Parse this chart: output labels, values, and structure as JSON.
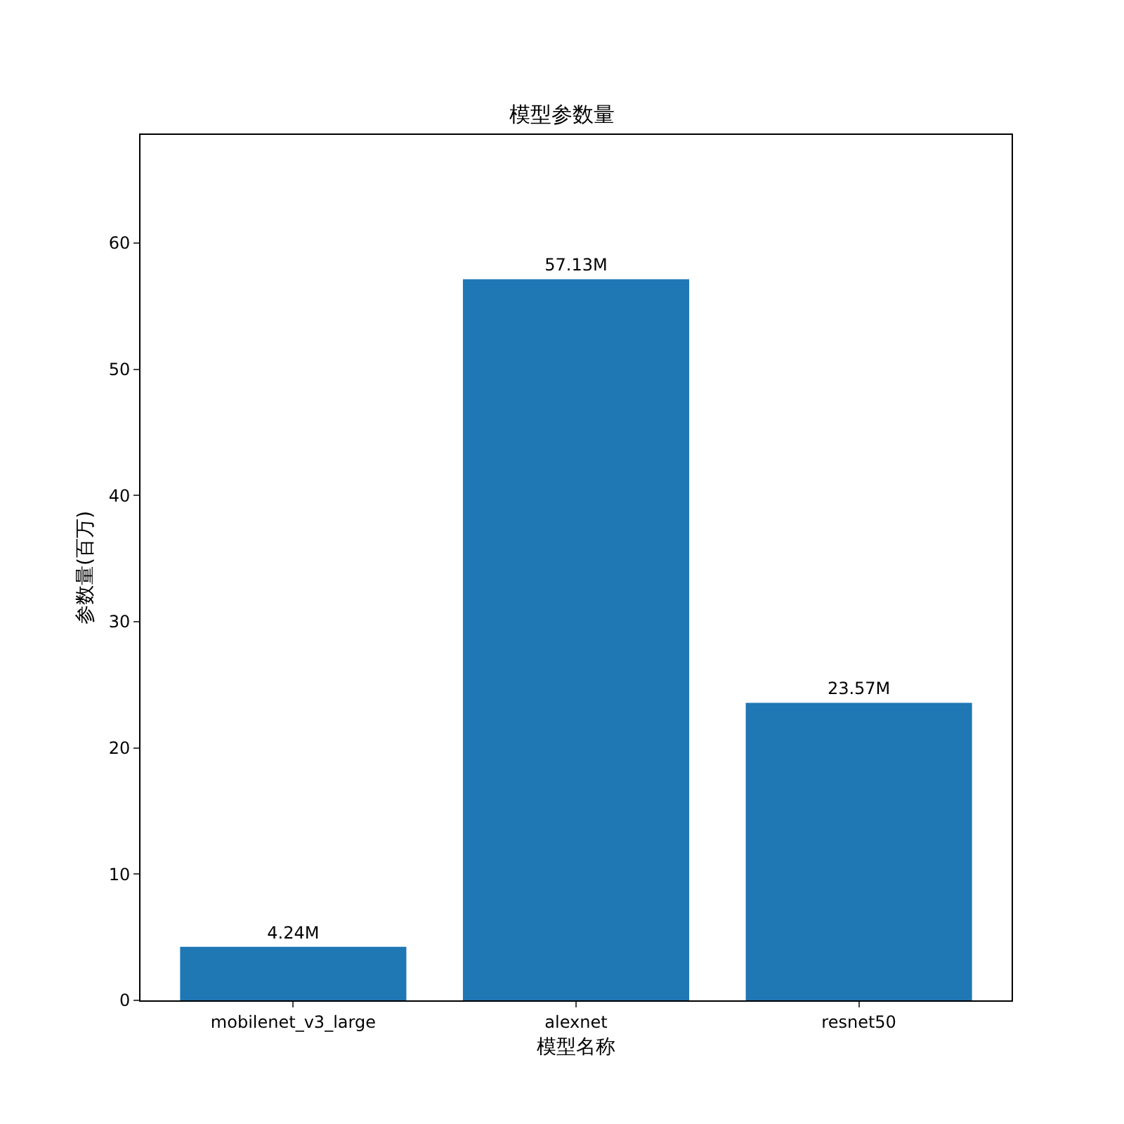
{
  "chart_data": {
    "type": "bar",
    "title": "模型参数量",
    "xlabel": "模型名称",
    "ylabel": "参数量(百万)",
    "categories": [
      "mobilenet_v3_large",
      "alexnet",
      "resnet50"
    ],
    "values": [
      4.24,
      57.13,
      23.57
    ],
    "value_labels": [
      "4.24M",
      "57.13M",
      "23.57M"
    ],
    "color": "#1f77b4",
    "ylim": [
      0,
      68.56
    ],
    "yticks": [
      0,
      10,
      20,
      30,
      40,
      50,
      60
    ],
    "grid": false
  }
}
